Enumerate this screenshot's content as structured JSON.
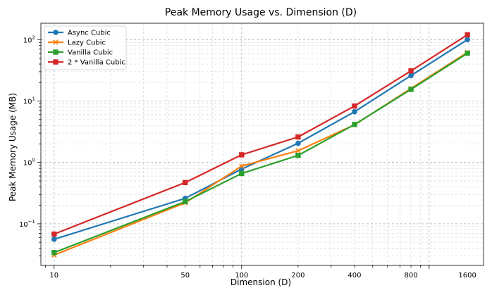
{
  "chart_data": {
    "type": "line",
    "title": "Peak Memory Usage vs. Dimension (D)",
    "xlabel": "Dimension (D)",
    "ylabel": "Peak Memory Usage (MB)",
    "xscale": "log",
    "yscale": "log",
    "xlim": [
      8.5,
      1950
    ],
    "ylim": [
      0.021,
      185
    ],
    "x": [
      10,
      50,
      100,
      200,
      400,
      800,
      1600
    ],
    "x_tick_labels": [
      "10",
      "50",
      "100",
      "200",
      "400",
      "800",
      "1600"
    ],
    "y_ticks": [
      {
        "value": 0.1,
        "base": "10",
        "exp": "−1"
      },
      {
        "value": 1,
        "base": "10",
        "exp": "0"
      },
      {
        "value": 10,
        "base": "10",
        "exp": "1"
      },
      {
        "value": 100,
        "base": "10",
        "exp": "2"
      }
    ],
    "grid": true,
    "legend_position": "top-left",
    "series": [
      {
        "name": "Async Cubic",
        "color": "#1f77b4",
        "marker": "circle",
        "values": [
          0.056,
          0.26,
          0.78,
          2.05,
          6.7,
          26,
          100
        ]
      },
      {
        "name": "Lazy Cubic",
        "color": "#ff7f0e",
        "marker": "x",
        "values": [
          0.031,
          0.22,
          0.87,
          1.55,
          4.1,
          16,
          62
        ]
      },
      {
        "name": "Vanilla Cubic",
        "color": "#2ca02c",
        "marker": "square",
        "values": [
          0.034,
          0.23,
          0.66,
          1.3,
          4.15,
          15.5,
          60
        ]
      },
      {
        "name": "2 * Vanilla Cubic",
        "color": "#d62728",
        "marker": "square",
        "values": [
          0.068,
          0.47,
          1.33,
          2.6,
          8.3,
          31,
          120
        ]
      }
    ]
  }
}
